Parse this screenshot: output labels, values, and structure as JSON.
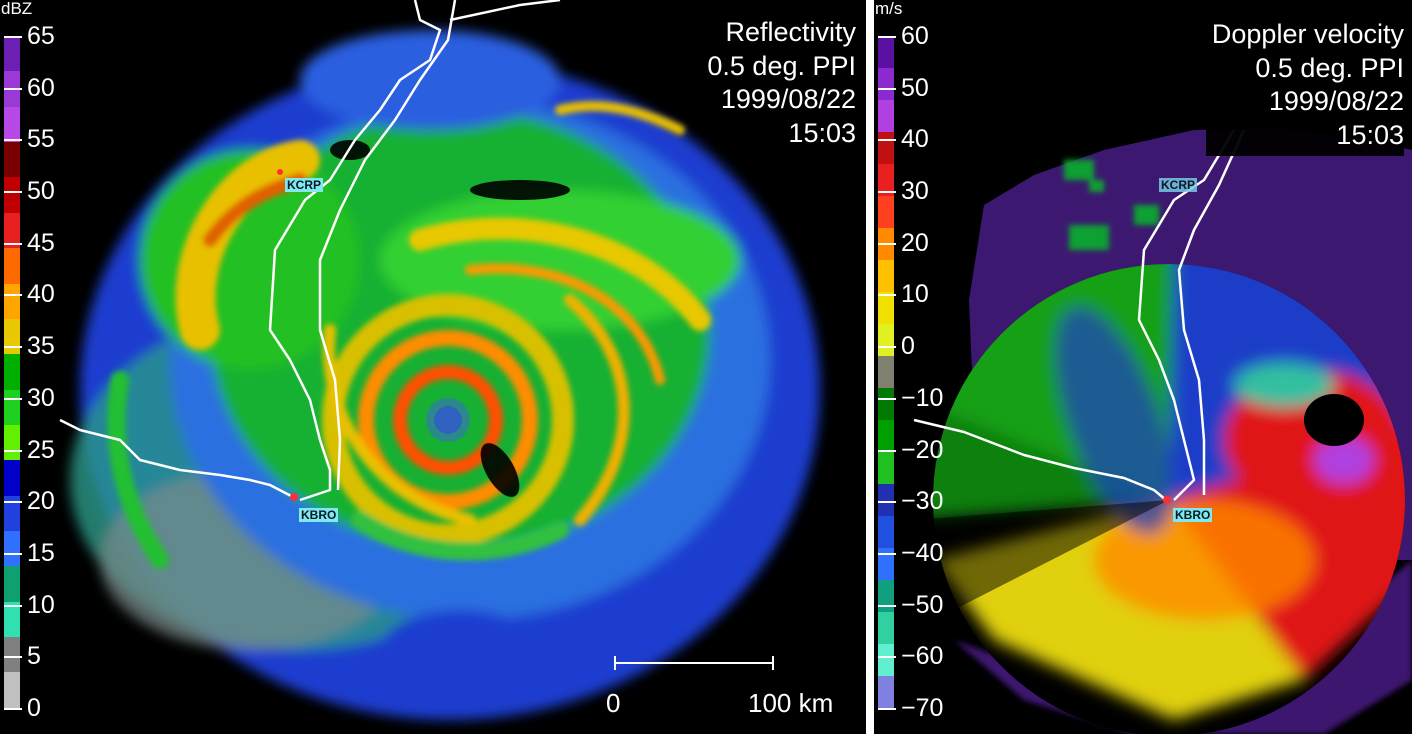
{
  "reflectivity": {
    "unit": "dBZ",
    "title_lines": [
      "Reflectivity",
      "0.5 deg. PPI",
      "1999/08/22",
      "15:03"
    ],
    "ticks": [
      "65",
      "60",
      "55",
      "50",
      "45",
      "40",
      "35",
      "30",
      "25",
      "20",
      "15",
      "10",
      "5",
      "0"
    ],
    "colors": [
      "#6b1fb3",
      "#9a3ad6",
      "#b848e6",
      "#7a0000",
      "#c00000",
      "#e82020",
      "#ff6a00",
      "#ffa500",
      "#e8c800",
      "#00b000",
      "#20d020",
      "#60f000",
      "#0000c8",
      "#2040e0",
      "#3070ff",
      "#10a070",
      "#30e0b0",
      "#808080",
      "#c0c0c0"
    ],
    "stations": {
      "north": "KCRP",
      "south": "KBRO"
    },
    "scale": {
      "start": "0",
      "end": "100 km"
    }
  },
  "velocity": {
    "unit": "m/s",
    "title_lines": [
      "Doppler velocity",
      "0.5 deg. PPI",
      "1999/08/22",
      "15:03"
    ],
    "ticks": [
      "60",
      "50",
      "40",
      "30",
      "20",
      "10",
      "0",
      "−10",
      "−20",
      "−30",
      "−40",
      "−50",
      "−60",
      "−70"
    ],
    "colors": [
      "#5a10a0",
      "#8a2ad0",
      "#b040e0",
      "#c01010",
      "#e82020",
      "#ff4020",
      "#ff8a00",
      "#ffc000",
      "#f0e000",
      "#e0f020",
      "#808070",
      "#007a00",
      "#00a000",
      "#20c020",
      "#2030b0",
      "#2050e0",
      "#3070ff",
      "#10a080",
      "#30d0a0",
      "#60f0d0",
      "#8080e0"
    ],
    "stations": {
      "north": "KCRP",
      "south": "KBRO"
    }
  }
}
